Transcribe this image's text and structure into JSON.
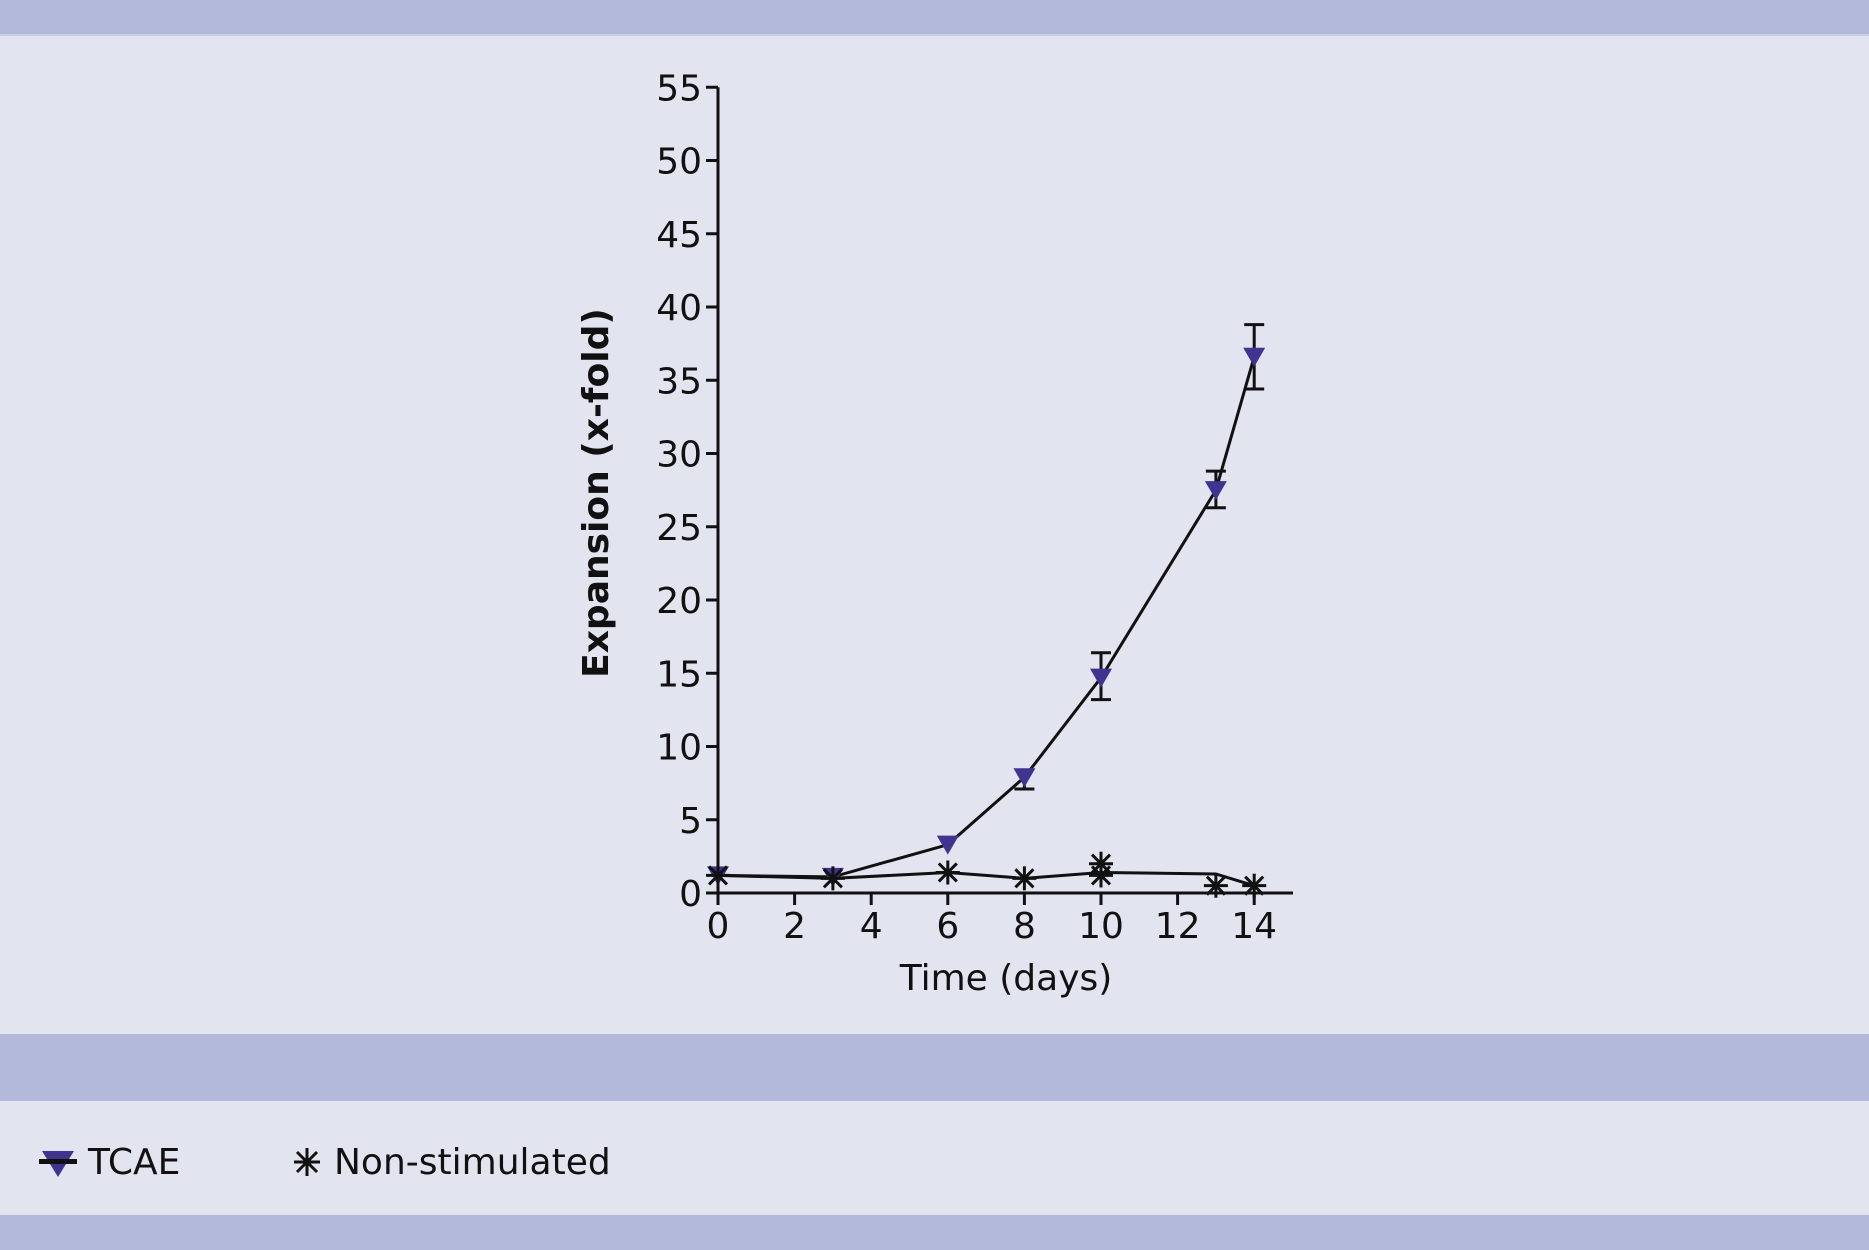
{
  "chart_data": {
    "type": "line",
    "title": "",
    "xlabel": "Time (days)",
    "ylabel": "Expansion (x-fold)",
    "xlim": [
      0,
      14
    ],
    "ylim": [
      0,
      55
    ],
    "xticks": [
      0,
      2,
      4,
      6,
      8,
      10,
      12,
      14
    ],
    "yticks": [
      0,
      5,
      10,
      15,
      20,
      25,
      30,
      35,
      40,
      45,
      50,
      55
    ],
    "grid": false,
    "legend_position": "bottom-left",
    "series": [
      {
        "name": "TCAE",
        "marker": "triangle-down",
        "color": "#3f3590",
        "x": [
          0,
          3,
          6,
          8,
          10,
          13,
          14
        ],
        "values": [
          1.2,
          1.1,
          3.3,
          7.9,
          14.7,
          27.5,
          36.6
        ],
        "error_low": [
          null,
          null,
          null,
          7.1,
          13.2,
          26.3,
          34.4
        ],
        "error_high": [
          null,
          null,
          null,
          null,
          16.4,
          28.8,
          38.8
        ]
      },
      {
        "name": "Non-stimulated",
        "marker": "asterisk",
        "color": "#111111",
        "x": [
          0,
          3,
          6,
          8,
          10,
          13,
          14
        ],
        "values": [
          1.2,
          1.0,
          1.4,
          1.0,
          1.4,
          1.3,
          0.5
        ],
        "replicates": {
          "10": [
            2.0,
            1.2
          ],
          "13": [
            0.5
          ]
        }
      }
    ]
  },
  "legend": {
    "items": [
      {
        "label": "TCAE",
        "icon": "triangle-down-icon"
      },
      {
        "label": "Non-stimulated",
        "icon": "asterisk-icon"
      }
    ]
  },
  "colors": {
    "band": "#b3b9db",
    "background": "#e2e4f0",
    "tcae": "#3f3590",
    "axis": "#111111"
  }
}
